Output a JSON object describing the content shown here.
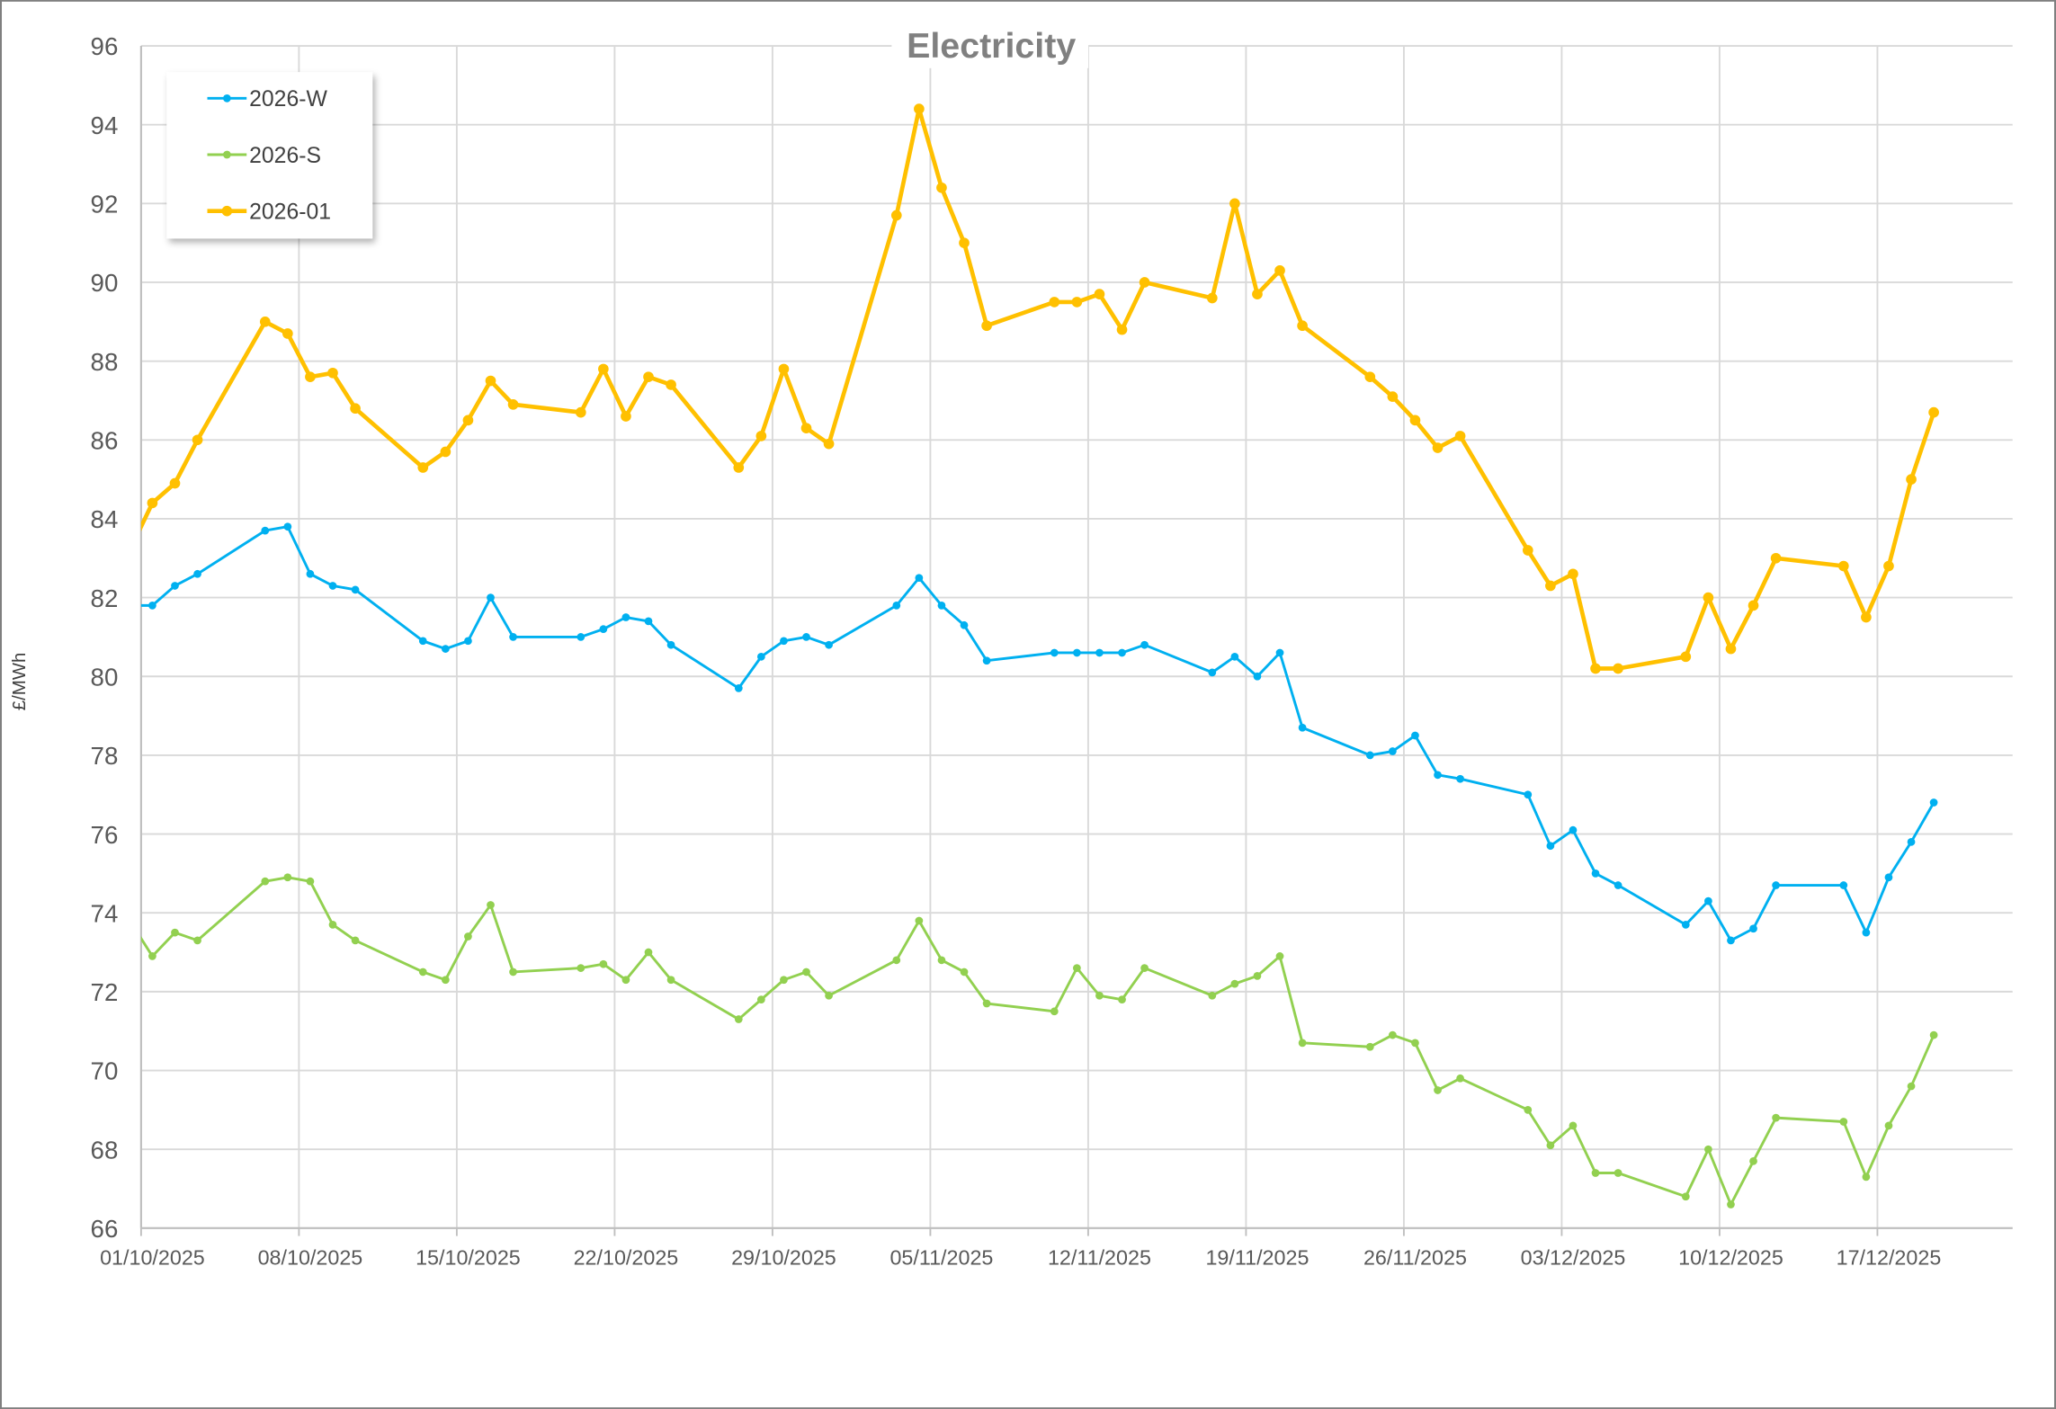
{
  "chart_data": {
    "type": "line",
    "title": "Electricity",
    "xlabel": "",
    "ylabel": "£/MWh",
    "ylim": [
      66,
      96
    ],
    "yticks": [
      66,
      68,
      70,
      72,
      74,
      76,
      78,
      80,
      82,
      84,
      86,
      88,
      90,
      92,
      94,
      96
    ],
    "xlim": [
      "01/10/2025",
      "23/12/2025"
    ],
    "xtick_labels": [
      "01/10/2025",
      "08/10/2025",
      "15/10/2025",
      "22/10/2025",
      "29/10/2025",
      "05/11/2025",
      "12/11/2025",
      "19/11/2025",
      "26/11/2025",
      "03/12/2025",
      "10/12/2025",
      "17/12/2025"
    ],
    "grid": true,
    "legend_position": "top-left",
    "x": [
      "30/09/2025",
      "01/10/2025",
      "02/10/2025",
      "03/10/2025",
      "06/10/2025",
      "07/10/2025",
      "08/10/2025",
      "09/10/2025",
      "10/10/2025",
      "13/10/2025",
      "14/10/2025",
      "15/10/2025",
      "16/10/2025",
      "17/10/2025",
      "20/10/2025",
      "21/10/2025",
      "22/10/2025",
      "23/10/2025",
      "24/10/2025",
      "27/10/2025",
      "28/10/2025",
      "29/10/2025",
      "30/10/2025",
      "31/10/2025",
      "03/11/2025",
      "04/11/2025",
      "05/11/2025",
      "06/11/2025",
      "07/11/2025",
      "10/11/2025",
      "11/11/2025",
      "12/11/2025",
      "13/11/2025",
      "14/11/2025",
      "17/11/2025",
      "18/11/2025",
      "19/11/2025",
      "20/11/2025",
      "21/11/2025",
      "24/11/2025",
      "25/11/2025",
      "26/11/2025",
      "27/11/2025",
      "28/11/2025",
      "01/12/2025",
      "02/12/2025",
      "03/12/2025",
      "04/12/2025",
      "05/12/2025",
      "08/12/2025",
      "09/12/2025",
      "10/12/2025",
      "11/12/2025",
      "12/12/2025",
      "15/12/2025",
      "16/12/2025",
      "17/12/2025",
      "18/12/2025",
      "19/12/2025"
    ],
    "series": [
      {
        "name": "2026-W",
        "color": "#00B0F0",
        "values": [
          81.8,
          81.8,
          82.3,
          82.6,
          83.7,
          83.8,
          82.6,
          82.3,
          82.2,
          80.9,
          80.7,
          80.9,
          82.0,
          81.0,
          81.0,
          81.2,
          81.5,
          81.4,
          80.8,
          79.7,
          80.5,
          80.9,
          81.0,
          80.8,
          81.8,
          82.5,
          81.8,
          81.3,
          80.4,
          80.6,
          80.6,
          80.6,
          80.6,
          80.8,
          80.1,
          80.5,
          80.0,
          80.6,
          78.7,
          78.0,
          78.1,
          78.5,
          77.5,
          77.4,
          77.0,
          75.7,
          76.1,
          75.0,
          74.7,
          73.7,
          74.3,
          73.3,
          73.6,
          74.7,
          74.7,
          73.5,
          74.9,
          75.8,
          76.8
        ]
      },
      {
        "name": "2026-S",
        "color": "#92D050",
        "values": [
          73.8,
          72.9,
          73.5,
          73.3,
          74.8,
          74.9,
          74.8,
          73.7,
          73.3,
          72.5,
          72.3,
          73.4,
          74.2,
          72.5,
          72.6,
          72.7,
          72.3,
          73.0,
          72.3,
          71.3,
          71.8,
          72.3,
          72.5,
          71.9,
          72.8,
          73.8,
          72.8,
          72.5,
          71.7,
          71.5,
          72.6,
          71.9,
          71.8,
          72.6,
          71.9,
          72.2,
          72.4,
          72.9,
          70.7,
          70.6,
          70.9,
          70.7,
          69.5,
          69.8,
          69.0,
          68.1,
          68.6,
          67.4,
          67.4,
          66.8,
          68.0,
          66.6,
          67.7,
          68.8,
          68.7,
          67.3,
          68.6,
          69.6,
          70.9
        ]
      },
      {
        "name": "2026-01",
        "color": "#FFC000",
        "values": [
          83.2,
          84.4,
          84.9,
          86.0,
          89.0,
          88.7,
          87.6,
          87.7,
          86.8,
          85.3,
          85.7,
          86.5,
          87.5,
          86.9,
          86.7,
          87.8,
          86.6,
          87.6,
          87.4,
          85.3,
          86.1,
          87.8,
          86.3,
          85.9,
          91.7,
          94.4,
          92.4,
          91.0,
          88.9,
          89.5,
          89.5,
          89.7,
          88.8,
          90.0,
          89.6,
          92.0,
          89.7,
          90.3,
          88.9,
          87.6,
          87.1,
          86.5,
          85.8,
          86.1,
          83.2,
          82.3,
          82.6,
          80.2,
          80.2,
          80.5,
          82.0,
          80.7,
          81.8,
          83.0,
          82.8,
          81.5,
          82.8,
          85.0,
          86.7
        ]
      }
    ]
  }
}
